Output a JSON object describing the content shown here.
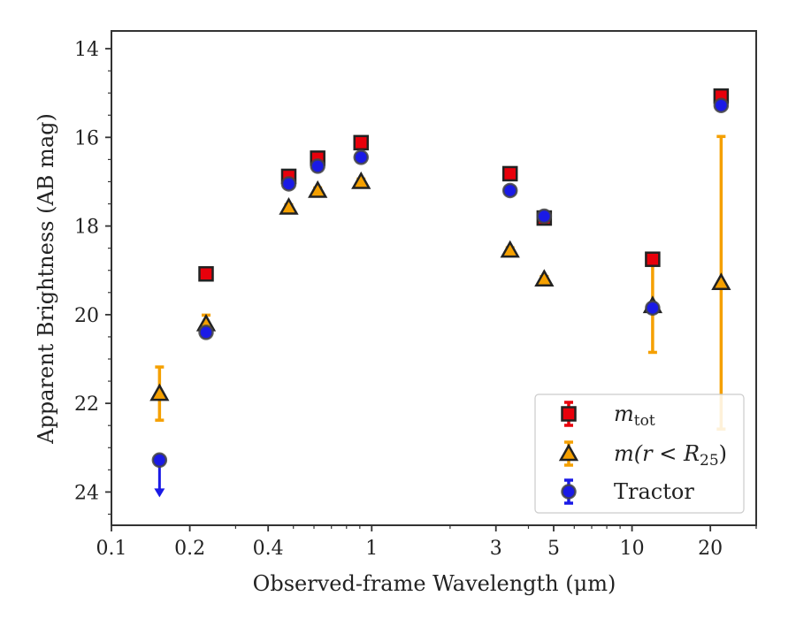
{
  "chart_data": {
    "type": "scatter",
    "title": "",
    "xlabel": "Observed-frame Wavelength (μm)",
    "ylabel": "Apparent Brightness (AB mag)",
    "xscale": "log",
    "xlim": [
      0.1,
      30
    ],
    "ylim": [
      24.75,
      13.6
    ],
    "y_inverted": true,
    "grid": false,
    "legend_position": "lower-right",
    "x_ticks": [
      {
        "value": 0.1,
        "label": "0.1"
      },
      {
        "value": 0.2,
        "label": "0.2"
      },
      {
        "value": 0.4,
        "label": "0.4"
      },
      {
        "value": 1,
        "label": "1"
      },
      {
        "value": 3,
        "label": "3"
      },
      {
        "value": 5,
        "label": "5"
      },
      {
        "value": 10,
        "label": "10"
      },
      {
        "value": 20,
        "label": "20"
      }
    ],
    "y_ticks": [
      {
        "value": 14,
        "label": "14"
      },
      {
        "value": 16,
        "label": "16"
      },
      {
        "value": 18,
        "label": "18"
      },
      {
        "value": 20,
        "label": "20"
      },
      {
        "value": 22,
        "label": "22"
      },
      {
        "value": 24,
        "label": "24"
      }
    ],
    "series": [
      {
        "name": "m_tot",
        "legend_base": "m",
        "legend_sub": "tot",
        "marker": "square",
        "color": "#e8000b",
        "points": [
          {
            "x": 0.231,
            "y": 19.08,
            "err": 0.08
          },
          {
            "x": 0.48,
            "y": 16.88,
            "err": 0.06
          },
          {
            "x": 0.62,
            "y": 16.47,
            "err": 0.06
          },
          {
            "x": 0.91,
            "y": 16.12,
            "err": 0.06
          },
          {
            "x": 3.4,
            "y": 16.82,
            "err": 0.06
          },
          {
            "x": 4.6,
            "y": 17.82,
            "err": 0.1
          },
          {
            "x": 12.0,
            "y": 18.75,
            "err": 0.1
          },
          {
            "x": 22.0,
            "y": 15.07,
            "err": 0.06
          }
        ]
      },
      {
        "name": "m(r < R_25)",
        "legend_parts": [
          "m(r < R",
          "25",
          ")"
        ],
        "marker": "triangle",
        "color": "#f5a000",
        "points": [
          {
            "x": 0.153,
            "y": 21.78,
            "err": 0.6
          },
          {
            "x": 0.231,
            "y": 20.21,
            "err": 0.2
          },
          {
            "x": 0.48,
            "y": 17.58,
            "err": 0.06
          },
          {
            "x": 0.62,
            "y": 17.2,
            "err": 0.06
          },
          {
            "x": 0.91,
            "y": 17.0,
            "err": 0.06
          },
          {
            "x": 3.4,
            "y": 18.55,
            "err": 0.06
          },
          {
            "x": 4.6,
            "y": 19.2,
            "err": 0.06
          },
          {
            "x": 12.0,
            "y": 19.8,
            "err": 1.05
          },
          {
            "x": 22.0,
            "y": 19.28,
            "err": 3.3
          }
        ]
      },
      {
        "name": "Tractor",
        "marker": "circle",
        "color": "#1a1ae6",
        "points": [
          {
            "x": 0.153,
            "y": 23.28,
            "err": 0,
            "upper_limit": true
          },
          {
            "x": 0.231,
            "y": 20.4,
            "err": 0.06
          },
          {
            "x": 0.48,
            "y": 17.05,
            "err": 0.06
          },
          {
            "x": 0.62,
            "y": 16.65,
            "err": 0.06
          },
          {
            "x": 0.91,
            "y": 16.45,
            "err": 0.06
          },
          {
            "x": 3.4,
            "y": 17.2,
            "err": 0.06
          },
          {
            "x": 4.6,
            "y": 17.78,
            "err": 0.1
          },
          {
            "x": 12.0,
            "y": 19.85,
            "err": 0.1
          },
          {
            "x": 22.0,
            "y": 15.28,
            "err": 0.08
          }
        ]
      }
    ]
  }
}
